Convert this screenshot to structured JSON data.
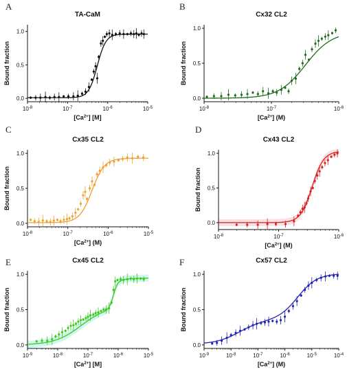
{
  "figure": {
    "panel_letters": [
      "A",
      "B",
      "C",
      "D",
      "E",
      "F"
    ]
  },
  "chart_data": [
    {
      "type": "scatter",
      "panel": "A",
      "title": "TA-CaM",
      "xlabel": "[Ca2+] [M]",
      "ylabel": "Bound fraction",
      "xscale": "log",
      "xlim": [
        1e-08,
        1e-05
      ],
      "ylim": [
        -0.05,
        1.1
      ],
      "xticks": [
        1e-08,
        1e-07,
        1e-06,
        1e-05
      ],
      "xtick_labels": [
        "10-8",
        "10-7",
        "10-6",
        "10-5"
      ],
      "yticks": [
        0,
        0.5,
        1.0
      ],
      "ytick_labels": [
        "0.0",
        "0.5",
        "1.0"
      ],
      "color": "#111111",
      "fit": {
        "ec50": 5.5e-07,
        "hill": 4.0,
        "bottom": 0.01,
        "top": 0.96
      },
      "points": [
        [
          1.2e-08,
          0.01
        ],
        [
          1.6e-08,
          0.01
        ],
        [
          2.1e-08,
          0.01
        ],
        [
          2.8e-08,
          0.02
        ],
        [
          3.6e-08,
          0.01
        ],
        [
          4.7e-08,
          0.02
        ],
        [
          6.1e-08,
          0.02
        ],
        [
          8e-08,
          0.03
        ],
        [
          1.05e-07,
          0.03
        ],
        [
          1.4e-07,
          0.03
        ],
        [
          1.8e-07,
          0.04
        ],
        [
          2.3e-07,
          0.07
        ],
        [
          2.8e-07,
          0.1
        ],
        [
          3.4e-07,
          0.17
        ],
        [
          4e-07,
          0.28
        ],
        [
          4.5e-07,
          0.4
        ],
        [
          5e-07,
          0.48
        ],
        [
          5.5e-07,
          0.3
        ],
        [
          6e-07,
          0.62
        ],
        [
          6.8e-07,
          0.82
        ],
        [
          7.6e-07,
          0.86
        ],
        [
          8.5e-07,
          0.92
        ],
        [
          9.5e-07,
          0.96
        ],
        [
          1.1e-06,
          0.97
        ],
        [
          1.3e-06,
          0.95
        ],
        [
          1.6e-06,
          0.96
        ],
        [
          2e-06,
          0.97
        ],
        [
          2.5e-06,
          0.96
        ],
        [
          3.1e-06,
          0.96
        ],
        [
          3.8e-06,
          0.97
        ],
        [
          4.5e-06,
          0.96
        ],
        [
          5.2e-06,
          0.97
        ],
        [
          6e-06,
          0.95
        ],
        [
          7e-06,
          0.97
        ],
        [
          8e-06,
          0.96
        ]
      ]
    },
    {
      "type": "scatter",
      "panel": "B",
      "title": "Cx32 CL2",
      "xlabel": "[Ca2+] (M)",
      "ylabel": "Bound fraction",
      "xscale": "log",
      "xlim": [
        1e-08,
        1e-06
      ],
      "ylim": [
        -0.05,
        1.05
      ],
      "xticks": [
        1e-08,
        1e-07,
        1e-06
      ],
      "xtick_labels": [
        "10-8",
        "10-7",
        "10-6"
      ],
      "yticks": [
        0,
        0.5,
        1.0
      ],
      "ytick_labels": [
        "0.0",
        "0.5",
        "1.0"
      ],
      "color": "#1e6b1e",
      "fit": {
        "ec50": 3.2e-07,
        "hill": 2.2,
        "bottom": 0.0,
        "top": 0.95
      },
      "points": [
        [
          1.1e-08,
          0.02
        ],
        [
          1.4e-08,
          0.03
        ],
        [
          1.8e-08,
          0.03
        ],
        [
          2.3e-08,
          0.05
        ],
        [
          2.9e-08,
          0.04
        ],
        [
          3.6e-08,
          0.05
        ],
        [
          4.4e-08,
          0.06
        ],
        [
          5.3e-08,
          0.08
        ],
        [
          6.3e-08,
          0.06
        ],
        [
          7.5e-08,
          0.1
        ],
        [
          9e-08,
          0.07
        ],
        [
          1.05e-07,
          0.1
        ],
        [
          1.2e-07,
          0.08
        ],
        [
          1.4e-07,
          0.12
        ],
        [
          1.6e-07,
          0.15
        ],
        [
          1.8e-07,
          0.1
        ],
        [
          2e-07,
          0.25
        ],
        [
          2.3e-07,
          0.28
        ],
        [
          2.6e-07,
          0.42
        ],
        [
          2.9e-07,
          0.5
        ],
        [
          3.2e-07,
          0.62
        ],
        [
          3.6e-07,
          0.55
        ],
        [
          4e-07,
          0.7
        ],
        [
          4.5e-07,
          0.78
        ],
        [
          5e-07,
          0.82
        ],
        [
          5.6e-07,
          0.85
        ],
        [
          6.3e-07,
          0.88
        ],
        [
          7e-07,
          0.9
        ],
        [
          8e-07,
          0.93
        ],
        [
          9e-07,
          0.97
        ]
      ]
    },
    {
      "type": "scatter",
      "panel": "C",
      "title": "Cx35 CL2",
      "xlabel": "[Ca2+] (M)",
      "ylabel": "Bound fraction",
      "xscale": "log",
      "xlim": [
        1e-08,
        1e-05
      ],
      "ylim": [
        -0.05,
        1.05
      ],
      "xticks": [
        1e-08,
        1e-07,
        1e-06,
        1e-05
      ],
      "xtick_labels": [
        "10-8",
        "10-7",
        "10-6",
        "10-5"
      ],
      "yticks": [
        0,
        0.5,
        1.0
      ],
      "ytick_labels": [
        "0.0",
        "0.5",
        "1.0"
      ],
      "color": "#f0a030",
      "fit": {
        "ec50": 4e-07,
        "hill": 2.8,
        "bottom": 0.01,
        "top": 0.93
      },
      "points": [
        [
          1.2e-08,
          0.05
        ],
        [
          1.5e-08,
          0.03
        ],
        [
          1.9e-08,
          0.02
        ],
        [
          2.4e-08,
          0.04
        ],
        [
          3e-08,
          0.03
        ],
        [
          3.7e-08,
          0.02
        ],
        [
          4.5e-08,
          0.04
        ],
        [
          5.5e-08,
          0.05
        ],
        [
          6.6e-08,
          0.03
        ],
        [
          8e-08,
          0.05
        ],
        [
          9.5e-08,
          0.06
        ],
        [
          1.1e-07,
          0.07
        ],
        [
          1.3e-07,
          0.1
        ],
        [
          1.55e-07,
          0.15
        ],
        [
          1.8e-07,
          0.2
        ],
        [
          2.1e-07,
          0.28
        ],
        [
          2.4e-07,
          0.4
        ],
        [
          2.7e-07,
          0.45
        ],
        [
          3e-07,
          0.35
        ],
        [
          3.5e-07,
          0.5
        ],
        [
          4e-07,
          0.6
        ],
        [
          4.6e-07,
          0.55
        ],
        [
          5.3e-07,
          0.7
        ],
        [
          6.2e-07,
          0.75
        ],
        [
          7.5e-07,
          0.8
        ],
        [
          9e-07,
          0.83
        ],
        [
          1.1e-06,
          0.87
        ],
        [
          1.4e-06,
          0.88
        ],
        [
          1.8e-06,
          0.9
        ],
        [
          2.3e-06,
          0.92
        ],
        [
          3e-06,
          0.94
        ],
        [
          4e-06,
          0.93
        ],
        [
          5.5e-06,
          0.95
        ],
        [
          7.5e-06,
          0.94
        ]
      ]
    },
    {
      "type": "scatter",
      "panel": "D",
      "title": "Cx43 CL2",
      "xlabel": "[Ca2+] (M)",
      "ylabel": "Bound fraction",
      "xscale": "log",
      "xlim": [
        1e-08,
        1e-06
      ],
      "ylim": [
        -0.1,
        1.05
      ],
      "xticks": [
        1e-08,
        1e-07,
        1e-06
      ],
      "xtick_labels": [
        "10-8",
        "10-7",
        "10-6"
      ],
      "yticks": [
        0,
        0.5,
        1.0
      ],
      "ytick_labels": [
        "0.0",
        "0.5",
        "1.0"
      ],
      "color": "#d62020",
      "fit": {
        "ec50": 3.6e-07,
        "hill": 4.5,
        "bottom": 0.0,
        "top": 1.03
      },
      "points": [
        [
          2e-08,
          -0.03
        ],
        [
          3e-08,
          -0.03
        ],
        [
          4.5e-08,
          -0.03
        ],
        [
          6.5e-08,
          -0.02
        ],
        [
          9e-08,
          -0.02
        ],
        [
          1.3e-07,
          -0.02
        ],
        [
          1.8e-07,
          0.02
        ],
        [
          2.1e-07,
          0.1
        ],
        [
          2.3e-07,
          0.15
        ],
        [
          2.5e-07,
          0.2
        ],
        [
          2.7e-07,
          0.22
        ],
        [
          2.9e-07,
          0.28
        ],
        [
          3.1e-07,
          0.35
        ],
        [
          3.4e-07,
          0.45
        ],
        [
          3.7e-07,
          0.5
        ],
        [
          4e-07,
          0.6
        ],
        [
          4.4e-07,
          0.68
        ],
        [
          4.8e-07,
          0.74
        ],
        [
          5.3e-07,
          0.8
        ],
        [
          5.9e-07,
          0.86
        ],
        [
          6.6e-07,
          0.9
        ],
        [
          7.5e-07,
          0.95
        ],
        [
          8.5e-07,
          0.98
        ],
        [
          9.5e-07,
          1.0
        ]
      ]
    },
    {
      "type": "scatter",
      "panel": "E",
      "title": "Cx45 CL2",
      "xlabel": "[Ca2+] [M]",
      "ylabel": "Bound fraction",
      "xscale": "log",
      "xlim": [
        1e-09,
        1e-05
      ],
      "ylim": [
        -0.05,
        1.05
      ],
      "xticks": [
        1e-09,
        1e-08,
        1e-07,
        1e-06,
        1e-05
      ],
      "xtick_labels": [
        "10-9",
        "10-8",
        "10-7",
        "10-6",
        "10-5"
      ],
      "yticks": [
        0,
        0.5,
        1.0
      ],
      "ytick_labels": [
        "0.0",
        "0.5",
        "1.0"
      ],
      "color": "#3ec81e",
      "fit_biphasic": {
        "ec50_1": 6e-08,
        "hill_1": 1.0,
        "amp_1": 0.55,
        "ec50_2": 7e-07,
        "hill_2": 6.0,
        "amp_2": 0.4,
        "bottom": 0.0
      },
      "points": [
        [
          2e-09,
          0.05
        ],
        [
          3e-09,
          0.06
        ],
        [
          4.5e-09,
          0.06
        ],
        [
          6.5e-09,
          0.08
        ],
        [
          8.5e-09,
          0.12
        ],
        [
          1.1e-08,
          0.15
        ],
        [
          1.4e-08,
          0.18
        ],
        [
          1.8e-08,
          0.2
        ],
        [
          2.2e-08,
          0.24
        ],
        [
          2.7e-08,
          0.27
        ],
        [
          3.3e-08,
          0.28
        ],
        [
          4e-08,
          0.3
        ],
        [
          4.8e-08,
          0.33
        ],
        [
          5.8e-08,
          0.35
        ],
        [
          7e-08,
          0.36
        ],
        [
          8.5e-08,
          0.38
        ],
        [
          1e-07,
          0.4
        ],
        [
          1.2e-07,
          0.42
        ],
        [
          1.5e-07,
          0.43
        ],
        [
          1.8e-07,
          0.45
        ],
        [
          2.2e-07,
          0.46
        ],
        [
          2.7e-07,
          0.48
        ],
        [
          3.3e-07,
          0.5
        ],
        [
          4e-07,
          0.5
        ],
        [
          5e-07,
          0.52
        ],
        [
          6e-07,
          0.6
        ],
        [
          7e-07,
          0.78
        ],
        [
          8e-07,
          0.9
        ],
        [
          9.5e-07,
          0.92
        ],
        [
          1.2e-06,
          0.93
        ],
        [
          1.5e-06,
          0.92
        ],
        [
          2e-06,
          0.93
        ],
        [
          2.6e-06,
          0.94
        ],
        [
          3.3e-06,
          0.93
        ],
        [
          4.2e-06,
          0.94
        ],
        [
          5.5e-06,
          0.94
        ],
        [
          7e-06,
          0.93
        ]
      ]
    },
    {
      "type": "scatter",
      "panel": "F",
      "title": "Cx57 CL2",
      "xlabel": "[Ca2+] (M)",
      "ylabel": "Bound fraction",
      "xscale": "log",
      "xlim": [
        1e-09,
        0.0001
      ],
      "ylim": [
        -0.05,
        1.05
      ],
      "xticks": [
        1e-09,
        1e-08,
        1e-07,
        1e-06,
        1e-05,
        0.0001
      ],
      "xtick_labels": [
        "10-9",
        "10-8",
        "10-7",
        "10-6",
        "10-5",
        "10-4"
      ],
      "yticks": [
        0,
        0.5,
        1.0
      ],
      "ytick_labels": [
        "0.0",
        "0.5",
        "1.0"
      ],
      "color": "#2020b8",
      "fit_biphasic": {
        "ec50_1": 2e-08,
        "hill_1": 1.0,
        "amp_1": 0.34,
        "ec50_2": 3e-06,
        "hill_2": 1.2,
        "amp_2": 0.66,
        "bottom": 0.01
      },
      "points": [
        [
          2e-09,
          0.02
        ],
        [
          3e-09,
          0.03
        ],
        [
          4.5e-09,
          0.06
        ],
        [
          7e-09,
          0.1
        ],
        [
          1e-08,
          0.14
        ],
        [
          1.5e-08,
          0.17
        ],
        [
          2.2e-08,
          0.2
        ],
        [
          3.2e-08,
          0.22
        ],
        [
          4.5e-08,
          0.25
        ],
        [
          6.5e-08,
          0.28
        ],
        [
          9e-08,
          0.3
        ],
        [
          1.3e-07,
          0.31
        ],
        [
          1.8e-07,
          0.32
        ],
        [
          2.5e-07,
          0.33
        ],
        [
          3.5e-07,
          0.34
        ],
        [
          5e-07,
          0.33
        ],
        [
          7e-07,
          0.35
        ],
        [
          1e-06,
          0.4
        ],
        [
          1.4e-06,
          0.48
        ],
        [
          2e-06,
          0.55
        ],
        [
          2.8e-06,
          0.62
        ],
        [
          4e-06,
          0.7
        ],
        [
          5.5e-06,
          0.78
        ],
        [
          7.5e-06,
          0.84
        ],
        [
          1e-05,
          0.88
        ],
        [
          1.5e-05,
          0.92
        ],
        [
          2.2e-05,
          0.95
        ],
        [
          3.2e-05,
          0.97
        ],
        [
          4.5e-05,
          0.98
        ],
        [
          6.5e-05,
          0.98
        ],
        [
          9e-05,
          0.98
        ]
      ]
    }
  ]
}
